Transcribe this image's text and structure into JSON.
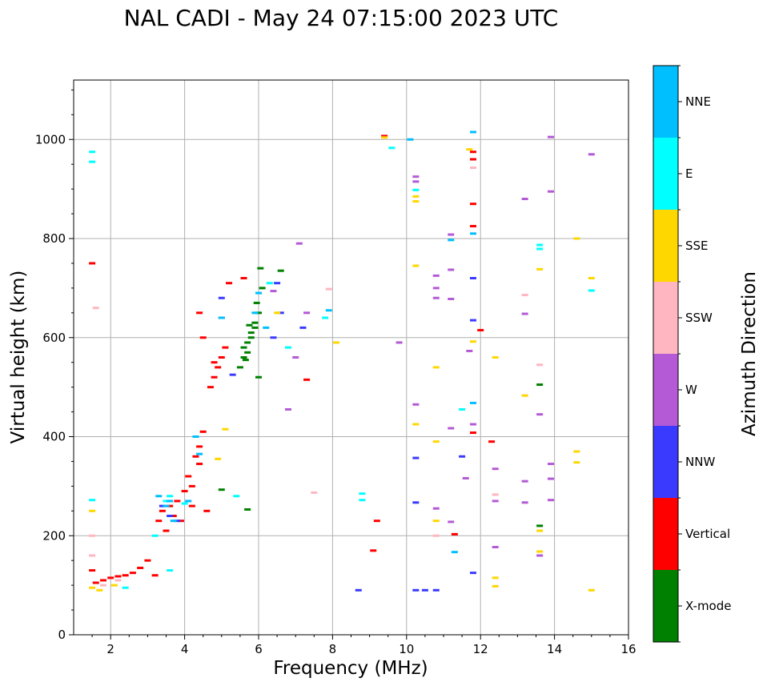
{
  "chart_data": {
    "type": "scatter",
    "title": "NAL CADI - May 24 07:15:00 2023 UTC",
    "xlabel": "Frequency (MHz)",
    "ylabel": "Virtual height (km)",
    "xlim": [
      1,
      16
    ],
    "ylim": [
      0,
      1120
    ],
    "xticks": [
      2,
      4,
      6,
      8,
      10,
      12,
      14,
      16
    ],
    "yticks": [
      0,
      200,
      400,
      600,
      800,
      1000
    ],
    "xtick_labels": [
      "2",
      "4",
      "6",
      "8",
      "10",
      "12",
      "14",
      "16"
    ],
    "ytick_labels": [
      "0",
      "200",
      "400",
      "600",
      "800",
      "1000"
    ],
    "grid": true,
    "colorbar": {
      "label": "Azimuth Direction",
      "categories": [
        {
          "name": "X-mode",
          "color": "#008000"
        },
        {
          "name": "Vertical",
          "color": "#ff0000"
        },
        {
          "name": "NNW",
          "color": "#3a3aff"
        },
        {
          "name": "W",
          "color": "#b45ad6"
        },
        {
          "name": "SSW",
          "color": "#ffb6c1"
        },
        {
          "name": "SSE",
          "color": "#ffd700"
        },
        {
          "name": "E",
          "color": "#00ffff"
        },
        {
          "name": "NNE",
          "color": "#00bfff"
        }
      ]
    },
    "series": [
      {
        "name": "X-mode",
        "points": [
          [
            5.5,
            540
          ],
          [
            5.6,
            560
          ],
          [
            5.7,
            590
          ],
          [
            5.8,
            610
          ],
          [
            5.9,
            630
          ],
          [
            6.0,
            650
          ],
          [
            5.95,
            670
          ],
          [
            6.1,
            700
          ],
          [
            5.6,
            580
          ],
          [
            5.7,
            570
          ],
          [
            5.8,
            600
          ],
          [
            5.9,
            620
          ],
          [
            6.05,
            740
          ],
          [
            6.0,
            520
          ],
          [
            5.7,
            253
          ],
          [
            6.6,
            735
          ],
          [
            5.0,
            293
          ],
          [
            13.6,
            220
          ],
          [
            13.6,
            505
          ],
          [
            5.65,
            555
          ],
          [
            5.75,
            625
          ]
        ]
      },
      {
        "name": "Vertical",
        "points": [
          [
            1.5,
            750
          ],
          [
            1.5,
            130
          ],
          [
            1.6,
            105
          ],
          [
            1.8,
            110
          ],
          [
            2.0,
            115
          ],
          [
            2.2,
            118
          ],
          [
            2.4,
            120
          ],
          [
            2.6,
            125
          ],
          [
            2.8,
            135
          ],
          [
            3.0,
            150
          ],
          [
            3.2,
            120
          ],
          [
            3.3,
            230
          ],
          [
            3.4,
            250
          ],
          [
            3.5,
            210
          ],
          [
            3.6,
            260
          ],
          [
            3.7,
            240
          ],
          [
            3.8,
            270
          ],
          [
            3.9,
            230
          ],
          [
            4.0,
            290
          ],
          [
            4.1,
            320
          ],
          [
            4.2,
            300
          ],
          [
            4.3,
            360
          ],
          [
            4.4,
            380
          ],
          [
            4.5,
            410
          ],
          [
            4.6,
            250
          ],
          [
            4.8,
            520
          ],
          [
            4.9,
            540
          ],
          [
            5.0,
            560
          ],
          [
            5.1,
            580
          ],
          [
            4.7,
            500
          ],
          [
            4.8,
            550
          ],
          [
            5.2,
            710
          ],
          [
            4.4,
            650
          ],
          [
            5.6,
            720
          ],
          [
            4.5,
            600
          ],
          [
            9.1,
            170
          ],
          [
            9.2,
            230
          ],
          [
            9.4,
            1007
          ],
          [
            11.8,
            960
          ],
          [
            11.8,
            870
          ],
          [
            11.8,
            825
          ],
          [
            11.8,
            975
          ],
          [
            12.0,
            615
          ],
          [
            12.3,
            390
          ],
          [
            11.8,
            408
          ],
          [
            11.3,
            203
          ],
          [
            7.3,
            515
          ],
          [
            5.0,
            640
          ],
          [
            4.4,
            345
          ],
          [
            4.2,
            260
          ]
        ]
      },
      {
        "name": "NNW",
        "points": [
          [
            3.4,
            260
          ],
          [
            3.6,
            240
          ],
          [
            3.8,
            230
          ],
          [
            5.3,
            525
          ],
          [
            6.4,
            600
          ],
          [
            6.6,
            650
          ],
          [
            7.2,
            620
          ],
          [
            10.25,
            357
          ],
          [
            10.25,
            90
          ],
          [
            10.5,
            90
          ],
          [
            10.8,
            90
          ],
          [
            8.7,
            90
          ],
          [
            11.5,
            360
          ],
          [
            11.8,
            125
          ],
          [
            11.8,
            720
          ],
          [
            11.8,
            635
          ],
          [
            6.5,
            710
          ],
          [
            10.25,
            267
          ],
          [
            5.0,
            680
          ]
        ]
      },
      {
        "name": "W",
        "points": [
          [
            10.25,
            925
          ],
          [
            10.25,
            915
          ],
          [
            11.2,
            808
          ],
          [
            11.2,
            737
          ],
          [
            10.8,
            725
          ],
          [
            10.8,
            700
          ],
          [
            10.8,
            680
          ],
          [
            11.2,
            678
          ],
          [
            13.2,
            880
          ],
          [
            13.9,
            895
          ],
          [
            13.9,
            1005
          ],
          [
            15.0,
            970
          ],
          [
            13.2,
            648
          ],
          [
            13.6,
            445
          ],
          [
            12.4,
            335
          ],
          [
            12.4,
            270
          ],
          [
            13.9,
            345
          ],
          [
            13.9,
            315
          ],
          [
            13.9,
            272
          ],
          [
            13.6,
            160
          ],
          [
            12.4,
            177
          ],
          [
            10.8,
            255
          ],
          [
            11.2,
            228
          ],
          [
            10.25,
            465
          ],
          [
            11.7,
            573
          ],
          [
            9.8,
            590
          ],
          [
            7.1,
            790
          ],
          [
            6.8,
            455
          ],
          [
            7.0,
            560
          ],
          [
            11.8,
            425
          ],
          [
            6.4,
            694
          ],
          [
            7.3,
            650
          ],
          [
            13.2,
            310
          ],
          [
            13.2,
            267
          ],
          [
            11.2,
            417
          ],
          [
            11.6,
            316
          ]
        ]
      },
      {
        "name": "SSW",
        "points": [
          [
            1.5,
            160
          ],
          [
            1.5,
            200
          ],
          [
            1.6,
            660
          ],
          [
            7.9,
            698
          ],
          [
            7.5,
            287
          ],
          [
            12.4,
            283
          ],
          [
            13.6,
            545
          ],
          [
            13.2,
            686
          ],
          [
            11.8,
            943
          ],
          [
            10.8,
            200
          ],
          [
            2.2,
            110
          ],
          [
            1.8,
            100
          ]
        ]
      },
      {
        "name": "SSE",
        "points": [
          [
            1.5,
            250
          ],
          [
            1.5,
            95
          ],
          [
            1.7,
            90
          ],
          [
            2.1,
            100
          ],
          [
            8.1,
            590
          ],
          [
            10.25,
            885
          ],
          [
            10.25,
            875
          ],
          [
            10.25,
            425
          ],
          [
            10.25,
            745
          ],
          [
            10.8,
            540
          ],
          [
            10.8,
            390
          ],
          [
            10.8,
            230
          ],
          [
            11.7,
            980
          ],
          [
            12.4,
            560
          ],
          [
            13.2,
            483
          ],
          [
            13.6,
            738
          ],
          [
            13.6,
            210
          ],
          [
            13.6,
            168
          ],
          [
            14.6,
            800
          ],
          [
            15.0,
            720
          ],
          [
            14.6,
            370
          ],
          [
            14.6,
            348
          ],
          [
            15.0,
            90
          ],
          [
            12.4,
            115
          ],
          [
            12.4,
            98
          ],
          [
            6.5,
            650
          ],
          [
            4.9,
            355
          ],
          [
            5.1,
            415
          ],
          [
            9.4,
            1004
          ],
          [
            11.8,
            592
          ]
        ]
      },
      {
        "name": "E",
        "points": [
          [
            1.5,
            975
          ],
          [
            1.5,
            955
          ],
          [
            1.5,
            272
          ],
          [
            3.5,
            270
          ],
          [
            3.6,
            280
          ],
          [
            3.2,
            200
          ],
          [
            8.8,
            285
          ],
          [
            8.8,
            272
          ],
          [
            9.6,
            983
          ],
          [
            10.25,
            898
          ],
          [
            11.5,
            455
          ],
          [
            13.6,
            787
          ],
          [
            13.6,
            779
          ],
          [
            15.0,
            695
          ],
          [
            5.4,
            280
          ],
          [
            3.6,
            130
          ],
          [
            2.4,
            95
          ],
          [
            7.8,
            640
          ],
          [
            6.3,
            710
          ],
          [
            6.8,
            580
          ],
          [
            4.0,
            265
          ]
        ]
      },
      {
        "name": "NNE",
        "points": [
          [
            3.3,
            280
          ],
          [
            3.5,
            260
          ],
          [
            3.7,
            230
          ],
          [
            4.1,
            270
          ],
          [
            4.3,
            400
          ],
          [
            4.4,
            365
          ],
          [
            5.0,
            640
          ],
          [
            5.9,
            650
          ],
          [
            6.2,
            620
          ],
          [
            6.0,
            690
          ],
          [
            7.9,
            655
          ],
          [
            10.1,
            1000
          ],
          [
            11.8,
            1015
          ],
          [
            11.8,
            468
          ],
          [
            11.3,
            167
          ],
          [
            11.2,
            797
          ],
          [
            11.8,
            810
          ],
          [
            3.6,
            270
          ]
        ]
      }
    ]
  }
}
